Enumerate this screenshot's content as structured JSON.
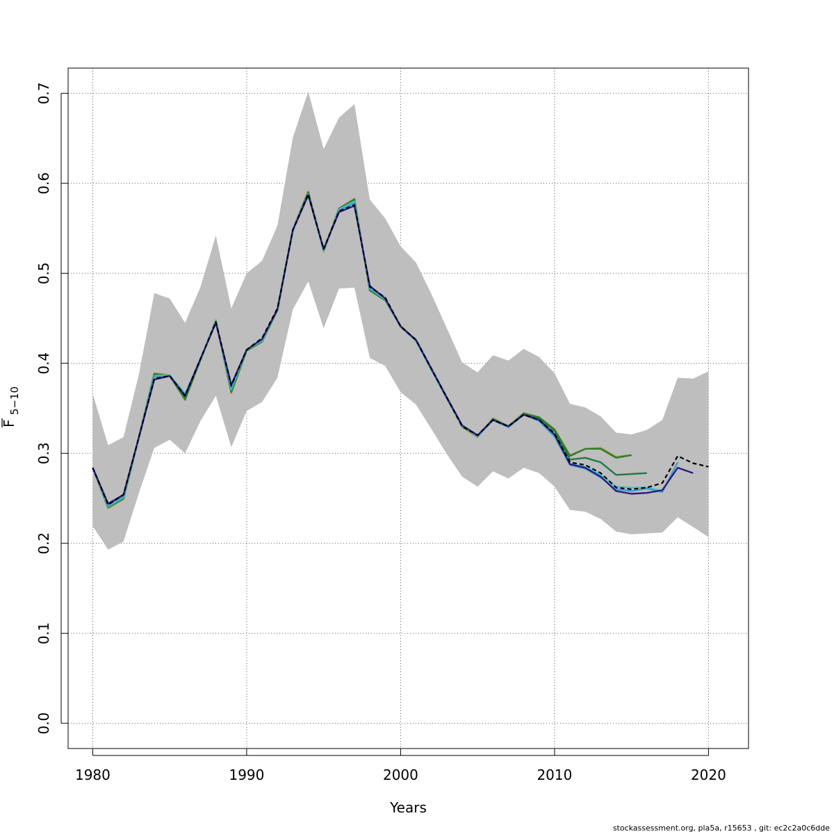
{
  "chart_data": {
    "type": "line",
    "title": "",
    "xlabel": "Years",
    "ylabel_main": "F",
    "ylabel_sub": "5−10",
    "xlim": [
      1978.4,
      2022.6
    ],
    "ylim": [
      -0.028,
      0.728
    ],
    "x_ticks": [
      1980,
      1990,
      2000,
      2010,
      2020
    ],
    "y_ticks": [
      0.0,
      0.1,
      0.2,
      0.3,
      0.4,
      0.5,
      0.6,
      0.7
    ],
    "y_tick_labels": [
      "0.0",
      "0.1",
      "0.2",
      "0.3",
      "0.4",
      "0.5",
      "0.6",
      "0.7"
    ],
    "grid": true,
    "colors": {
      "band": "#bebebe",
      "base": "#000000",
      "retro_2019": "#2a1c84",
      "retro_2018": "#3f9ec8",
      "retro_2017": "#52c0c4",
      "retro_2016": "#1f7a4a",
      "retro_2015": "#2e7d2e",
      "retro_2014": "#9a9a30"
    },
    "confidence_band": {
      "x": [
        1980,
        1981,
        1982,
        1983,
        1984,
        1985,
        1986,
        1987,
        1988,
        1989,
        1990,
        1991,
        1992,
        1993,
        1994,
        1995,
        1996,
        1997,
        1998,
        1999,
        2000,
        2001,
        2002,
        2003,
        2004,
        2005,
        2006,
        2007,
        2008,
        2009,
        2010,
        2011,
        2012,
        2013,
        2014,
        2015,
        2016,
        2017,
        2018,
        2019,
        2020
      ],
      "lower": [
        0.219,
        0.193,
        0.202,
        0.256,
        0.306,
        0.315,
        0.3,
        0.336,
        0.364,
        0.307,
        0.347,
        0.357,
        0.384,
        0.46,
        0.491,
        0.439,
        0.483,
        0.484,
        0.406,
        0.397,
        0.368,
        0.354,
        0.327,
        0.299,
        0.274,
        0.263,
        0.28,
        0.272,
        0.284,
        0.278,
        0.263,
        0.237,
        0.235,
        0.227,
        0.213,
        0.21,
        0.211,
        0.212,
        0.229,
        0.218,
        0.207
      ],
      "upper": [
        0.366,
        0.309,
        0.318,
        0.388,
        0.478,
        0.472,
        0.445,
        0.485,
        0.542,
        0.461,
        0.5,
        0.514,
        0.553,
        0.651,
        0.702,
        0.638,
        0.673,
        0.688,
        0.582,
        0.561,
        0.53,
        0.512,
        0.477,
        0.439,
        0.401,
        0.39,
        0.409,
        0.403,
        0.416,
        0.407,
        0.389,
        0.355,
        0.351,
        0.341,
        0.323,
        0.321,
        0.326,
        0.337,
        0.384,
        0.383,
        0.391
      ]
    },
    "series": [
      {
        "key": "base",
        "dashed": true,
        "x": [
          1980,
          1981,
          1982,
          1983,
          1984,
          1985,
          1986,
          1987,
          1988,
          1989,
          1990,
          1991,
          1992,
          1993,
          1994,
          1995,
          1996,
          1997,
          1998,
          1999,
          2000,
          2001,
          2002,
          2003,
          2004,
          2005,
          2006,
          2007,
          2008,
          2009,
          2010,
          2011,
          2012,
          2013,
          2014,
          2015,
          2016,
          2017,
          2018,
          2019,
          2020
        ],
        "y": [
          0.284,
          0.243,
          0.254,
          0.318,
          0.383,
          0.386,
          0.364,
          0.405,
          0.446,
          0.375,
          0.415,
          0.428,
          0.461,
          0.548,
          0.588,
          0.527,
          0.569,
          0.576,
          0.485,
          0.473,
          0.441,
          0.426,
          0.394,
          0.362,
          0.33,
          0.32,
          0.337,
          0.33,
          0.343,
          0.337,
          0.322,
          0.29,
          0.287,
          0.278,
          0.262,
          0.26,
          0.262,
          0.267,
          0.297,
          0.289,
          0.285
        ]
      },
      {
        "key": "retro_2019",
        "dashed": false,
        "x": [
          1980,
          1981,
          1982,
          1983,
          1984,
          1985,
          1986,
          1987,
          1988,
          1989,
          1990,
          1991,
          1992,
          1993,
          1994,
          1995,
          1996,
          1997,
          1998,
          1999,
          2000,
          2001,
          2002,
          2003,
          2004,
          2005,
          2006,
          2007,
          2008,
          2009,
          2010,
          2011,
          2012,
          2013,
          2014,
          2015,
          2016,
          2017,
          2018,
          2019
        ],
        "y": [
          0.284,
          0.244,
          0.254,
          0.318,
          0.382,
          0.386,
          0.364,
          0.405,
          0.445,
          0.376,
          0.415,
          0.427,
          0.46,
          0.548,
          0.587,
          0.527,
          0.568,
          0.575,
          0.486,
          0.472,
          0.441,
          0.426,
          0.394,
          0.362,
          0.331,
          0.32,
          0.337,
          0.33,
          0.343,
          0.337,
          0.321,
          0.288,
          0.284,
          0.274,
          0.258,
          0.255,
          0.256,
          0.259,
          0.284,
          0.278
        ]
      },
      {
        "key": "retro_2018",
        "dashed": false,
        "x": [
          1980,
          1981,
          1982,
          1983,
          1984,
          1985,
          1986,
          1987,
          1988,
          1989,
          1990,
          1991,
          1992,
          1993,
          1994,
          1995,
          1996,
          1997,
          1998,
          1999,
          2000,
          2001,
          2002,
          2003,
          2004,
          2005,
          2006,
          2007,
          2008,
          2009,
          2010,
          2011,
          2012,
          2013,
          2014,
          2015,
          2016,
          2017,
          2018
        ],
        "y": [
          0.284,
          0.242,
          0.252,
          0.318,
          0.385,
          0.386,
          0.365,
          0.405,
          0.446,
          0.373,
          0.415,
          0.426,
          0.46,
          0.548,
          0.587,
          0.526,
          0.57,
          0.578,
          0.484,
          0.472,
          0.441,
          0.425,
          0.393,
          0.361,
          0.33,
          0.319,
          0.337,
          0.329,
          0.343,
          0.336,
          0.319,
          0.287,
          0.283,
          0.273,
          0.26,
          0.258,
          0.261,
          0.257,
          0.29
        ]
      },
      {
        "key": "retro_2017",
        "dashed": false,
        "x": [
          1980,
          1981,
          1982,
          1983,
          1984,
          1985,
          1986,
          1987,
          1988,
          1989,
          1990,
          1991,
          1992,
          1993,
          1994,
          1995,
          1996,
          1997,
          1998,
          1999,
          2000,
          2001,
          2002,
          2003,
          2004,
          2005,
          2006,
          2007,
          2008,
          2009,
          2010,
          2011,
          2012,
          2013,
          2014,
          2015,
          2016,
          2017
        ],
        "y": [
          0.284,
          0.241,
          0.251,
          0.318,
          0.386,
          0.387,
          0.366,
          0.405,
          0.447,
          0.371,
          0.415,
          0.425,
          0.46,
          0.549,
          0.588,
          0.525,
          0.571,
          0.58,
          0.483,
          0.471,
          0.441,
          0.425,
          0.393,
          0.361,
          0.33,
          0.319,
          0.337,
          0.329,
          0.343,
          0.336,
          0.318,
          0.288,
          0.285,
          0.276,
          0.263,
          0.262,
          0.262,
          0.258
        ]
      },
      {
        "key": "retro_2016",
        "dashed": false,
        "x": [
          1980,
          1981,
          1982,
          1983,
          1984,
          1985,
          1986,
          1987,
          1988,
          1989,
          1990,
          1991,
          1992,
          1993,
          1994,
          1995,
          1996,
          1997,
          1998,
          1999,
          2000,
          2001,
          2002,
          2003,
          2004,
          2005,
          2006,
          2007,
          2008,
          2009,
          2010,
          2011,
          2012,
          2013,
          2014,
          2015,
          2016
        ],
        "y": [
          0.284,
          0.24,
          0.25,
          0.318,
          0.387,
          0.386,
          0.362,
          0.404,
          0.447,
          0.369,
          0.415,
          0.425,
          0.46,
          0.549,
          0.589,
          0.525,
          0.571,
          0.581,
          0.482,
          0.471,
          0.441,
          0.425,
          0.393,
          0.362,
          0.33,
          0.319,
          0.338,
          0.329,
          0.344,
          0.339,
          0.325,
          0.293,
          0.295,
          0.29,
          0.276,
          0.277,
          0.278
        ]
      },
      {
        "key": "retro_2015",
        "dashed": false,
        "x": [
          1980,
          1981,
          1982,
          1983,
          1984,
          1985,
          1986,
          1987,
          1988,
          1989,
          1990,
          1991,
          1992,
          1993,
          1994,
          1995,
          1996,
          1997,
          1998,
          1999,
          2000,
          2001,
          2002,
          2003,
          2004,
          2005,
          2006,
          2007,
          2008,
          2009,
          2010,
          2011,
          2012,
          2013,
          2014,
          2015
        ],
        "y": [
          0.284,
          0.24,
          0.25,
          0.318,
          0.388,
          0.386,
          0.36,
          0.404,
          0.447,
          0.368,
          0.414,
          0.424,
          0.459,
          0.549,
          0.59,
          0.525,
          0.572,
          0.582,
          0.481,
          0.47,
          0.441,
          0.425,
          0.393,
          0.362,
          0.33,
          0.319,
          0.338,
          0.33,
          0.344,
          0.34,
          0.326,
          0.297,
          0.305,
          0.305,
          0.295,
          0.298
        ]
      },
      {
        "key": "retro_2014",
        "dashed": false,
        "x": [
          1980,
          1981,
          1982,
          1983,
          1984,
          1985,
          1986,
          1987,
          1988,
          1989,
          1990,
          1991,
          1992,
          1993,
          1994,
          1995,
          1996,
          1997,
          1998,
          1999,
          2000,
          2001,
          2002,
          2003,
          2004,
          2005,
          2006,
          2007,
          2008,
          2009,
          2010,
          2011,
          2012,
          2013,
          2014,
          2015
        ],
        "y": [
          0.284,
          0.239,
          0.249,
          0.318,
          0.389,
          0.387,
          0.359,
          0.404,
          0.448,
          0.367,
          0.414,
          0.424,
          0.459,
          0.549,
          0.591,
          0.524,
          0.572,
          0.583,
          0.481,
          0.47,
          0.442,
          0.425,
          0.393,
          0.362,
          0.329,
          0.318,
          0.339,
          0.33,
          0.345,
          0.34,
          0.327,
          0.298,
          0.305,
          0.306,
          0.296,
          0.298
        ]
      }
    ]
  },
  "footer": "stockassessment.org, pla5a, r15653 , git: ec2c2a0c6dde"
}
